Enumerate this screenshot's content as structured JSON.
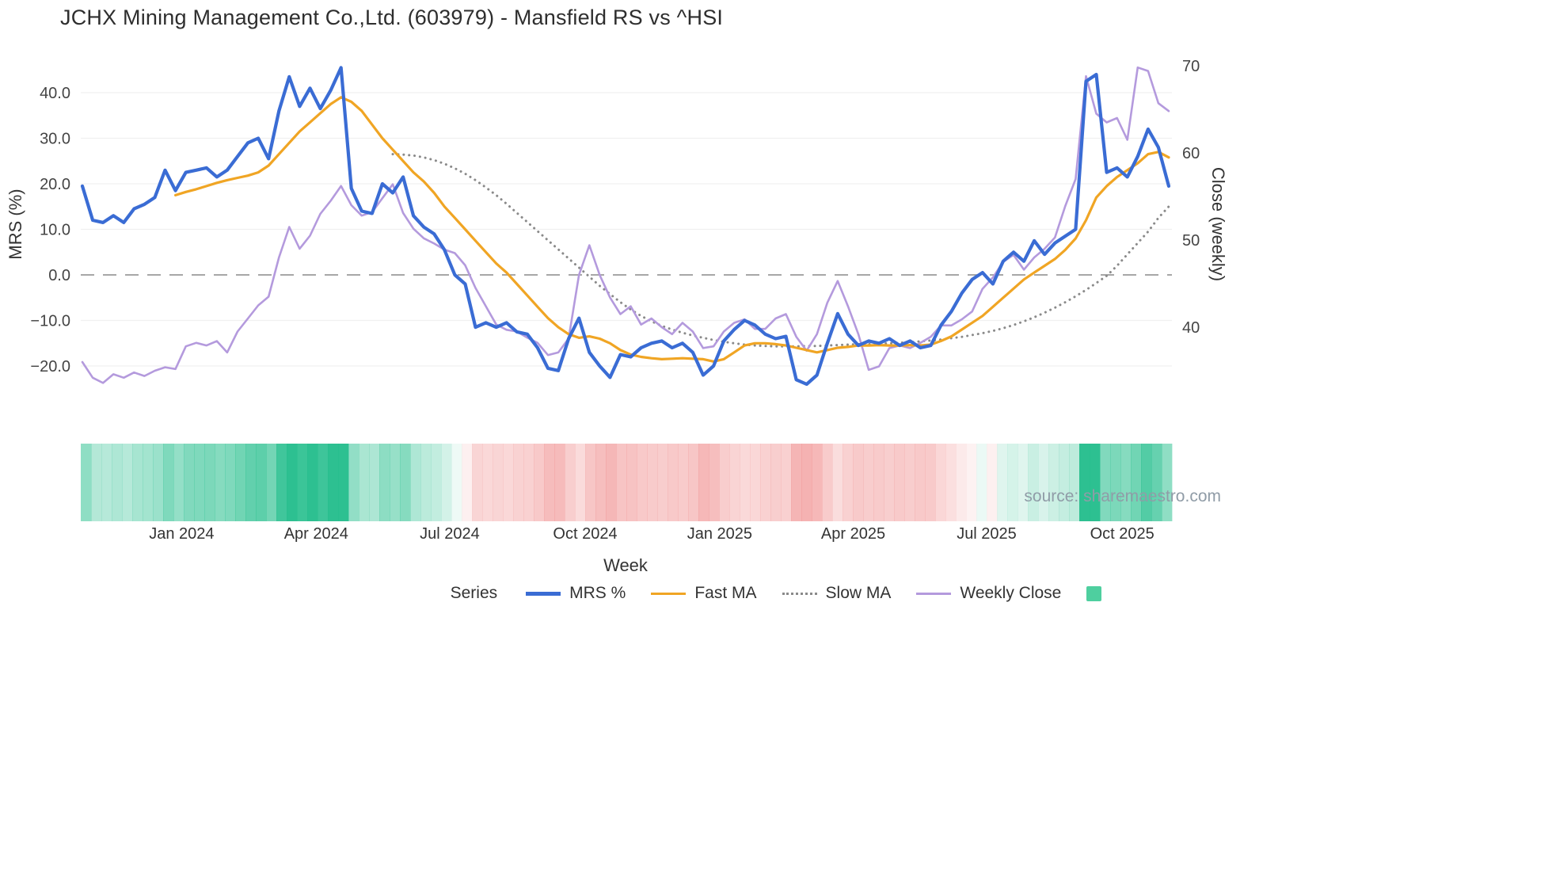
{
  "title": "JCHX Mining Management Co.,Ltd. (603979) - Mansfield RS vs ^HSI",
  "watermark": "source: sharemaestro.com",
  "axes": {
    "left_label": "MRS (%)",
    "right_label": "Close (weekly)",
    "x_label": "Week",
    "left_ticks": [
      {
        "label": "40.0",
        "v": 40
      },
      {
        "label": "30.0",
        "v": 30
      },
      {
        "label": "20.0",
        "v": 20
      },
      {
        "label": "10.0",
        "v": 10
      },
      {
        "label": "0.0",
        "v": 0
      },
      {
        "label": "−10.0",
        "v": -10
      },
      {
        "label": "−20.0",
        "v": -20
      }
    ],
    "right_ticks": [
      {
        "label": "70",
        "v": 70
      },
      {
        "label": "60",
        "v": 60
      },
      {
        "label": "50",
        "v": 50
      },
      {
        "label": "40",
        "v": 40
      }
    ],
    "x_ticks": [
      {
        "label": "Jan 2024",
        "i": 9.6
      },
      {
        "label": "Apr 2024",
        "i": 22.6
      },
      {
        "label": "Jul 2024",
        "i": 35.5
      },
      {
        "label": "Oct 2024",
        "i": 48.6
      },
      {
        "label": "Jan 2025",
        "i": 61.6
      },
      {
        "label": "Apr 2025",
        "i": 74.5
      },
      {
        "label": "Jul 2025",
        "i": 87.4
      },
      {
        "label": "Oct 2025",
        "i": 100.5
      }
    ]
  },
  "legend": {
    "title": "Series",
    "items": [
      {
        "label": "MRS %",
        "series": 0
      },
      {
        "label": "Fast MA",
        "series": 1
      },
      {
        "label": "Slow MA",
        "series": 2
      },
      {
        "label": "Weekly Close",
        "series": 3
      }
    ],
    "heat_swatch_color": "#4ecf9f"
  },
  "chart_data": {
    "type": "line",
    "title": "JCHX Mining Management Co.,Ltd. (603979) - Mansfield RS vs ^HSI",
    "xlabel": "Week",
    "ylabel_left": "MRS (%)",
    "ylabel_right": "Close (weekly)",
    "x_unit": "week_index",
    "x_tick_labels": [
      "Jan 2024",
      "Apr 2024",
      "Jul 2024",
      "Oct 2024",
      "Jan 2025",
      "Apr 2025",
      "Jul 2025",
      "Oct 2025"
    ],
    "left_axis_ticks": [
      40,
      30,
      20,
      10,
      0,
      -10,
      -20
    ],
    "right_axis_ticks": [
      70,
      60,
      50,
      40
    ],
    "zero_line": 0,
    "grid": "horizontal-faint",
    "legend_position": "bottom-center",
    "strip_colors": {
      "positive": "#22bd8b",
      "negative": "#ee8080"
    },
    "series": [
      {
        "name": "MRS %",
        "axis": "left",
        "color": "#3a6cd4",
        "style": "solid",
        "width": 4.2,
        "values": [
          19.5,
          12,
          11.5,
          13,
          11.5,
          14.5,
          15.5,
          17,
          23,
          18.5,
          22.5,
          23,
          23.5,
          21.5,
          23,
          26,
          29,
          30,
          25.5,
          36,
          43.5,
          37,
          41,
          36.5,
          40.5,
          45.5,
          19,
          14,
          13.5,
          20,
          18,
          21.5,
          13,
          10.5,
          9,
          5.5,
          0,
          -2,
          -11.5,
          -10.5,
          -11.5,
          -10.5,
          -12.5,
          -13,
          -16,
          -20.5,
          -21,
          -14,
          -9.5,
          -17,
          -20,
          -22.5,
          -17.5,
          -18,
          -16,
          -15,
          -14.5,
          -16,
          -15,
          -17,
          -22,
          -20,
          -14.5,
          -12,
          -10,
          -11,
          -13,
          -14,
          -13.5,
          -23,
          -24,
          -22,
          -15,
          -8.5,
          -13,
          -15.5,
          -14.5,
          -15,
          -14,
          -15.5,
          -14.5,
          -16,
          -15.5,
          -11,
          -8,
          -4,
          -1,
          0.5,
          -2,
          3,
          5,
          3,
          7.5,
          4.5,
          7,
          8.5,
          10,
          42.5,
          44,
          22.5,
          23.5,
          21.5,
          26,
          32,
          28,
          19.5
        ]
      },
      {
        "name": "Fast MA",
        "axis": "left",
        "color": "#f0a524",
        "style": "solid",
        "width": 3.2,
        "values": [
          null,
          null,
          null,
          null,
          null,
          null,
          null,
          null,
          null,
          17.5,
          18.2,
          18.8,
          19.5,
          20.2,
          20.8,
          21.3,
          21.8,
          22.5,
          24,
          26.5,
          29,
          31.5,
          33.5,
          35.5,
          37.5,
          39,
          38,
          36,
          33,
          30,
          27.5,
          25,
          22.5,
          20.5,
          18,
          15,
          12.5,
          10,
          7.5,
          5,
          2.5,
          0.5,
          -2,
          -4.5,
          -7,
          -9.5,
          -11.5,
          -13,
          -13.8,
          -13.5,
          -14,
          -15,
          -16.5,
          -17.5,
          -18,
          -18.3,
          -18.5,
          -18.4,
          -18.3,
          -18.4,
          -18.5,
          -19,
          -18.5,
          -17,
          -15.5,
          -15,
          -15,
          -15.2,
          -15.5,
          -16,
          -16.5,
          -17,
          -16.5,
          -16,
          -15.8,
          -15.5,
          -15.5,
          -15.4,
          -15.5,
          -15.5,
          -15.4,
          -15.5,
          -15.3,
          -14.5,
          -13.5,
          -12,
          -10.5,
          -9,
          -7,
          -5,
          -3,
          -1,
          0.5,
          2,
          3.5,
          5.5,
          8,
          12,
          17,
          19.5,
          21.5,
          23,
          24.5,
          26.5,
          27,
          25.8
        ]
      },
      {
        "name": "Slow MA",
        "axis": "left",
        "color": "#8a8a8a",
        "style": "dotted",
        "width": 3,
        "values": [
          null,
          null,
          null,
          null,
          null,
          null,
          null,
          null,
          null,
          null,
          null,
          null,
          null,
          null,
          null,
          null,
          null,
          null,
          null,
          null,
          null,
          null,
          null,
          null,
          null,
          null,
          null,
          null,
          null,
          null,
          26.5,
          26.4,
          26.2,
          25.8,
          25.2,
          24.4,
          23.4,
          22.2,
          20.8,
          19.2,
          17.5,
          15.6,
          13.6,
          11.6,
          9.6,
          7.6,
          5.6,
          3.6,
          1.6,
          -0.4,
          -2.4,
          -4.2,
          -6,
          -7.6,
          -9,
          -10.2,
          -11.2,
          -12,
          -12.7,
          -13.3,
          -13.8,
          -14.3,
          -14.7,
          -15,
          -15.3,
          -15.5,
          -15.6,
          -15.7,
          -15.7,
          -15.7,
          -15.6,
          -15.6,
          -15.5,
          -15.4,
          -15.3,
          -15.2,
          -15.2,
          -15.1,
          -15,
          -14.9,
          -14.8,
          -14.6,
          -14.4,
          -14.2,
          -13.9,
          -13.6,
          -13.2,
          -12.8,
          -12.3,
          -11.7,
          -11,
          -10.2,
          -9.3,
          -8.3,
          -7.2,
          -6,
          -4.7,
          -3.3,
          -1.8,
          -0.2,
          2,
          4.5,
          7,
          9.5,
          12.5,
          15
        ]
      },
      {
        "name": "Weekly Close",
        "axis": "right",
        "color": "#b49add",
        "style": "solid",
        "width": 2.6,
        "values": [
          36,
          34.2,
          33.6,
          34.6,
          34.2,
          34.8,
          34.4,
          35,
          35.4,
          35.2,
          37.8,
          38.2,
          37.9,
          38.4,
          37.1,
          39.5,
          41,
          42.5,
          43.5,
          48,
          51.5,
          49,
          50.5,
          53,
          54.5,
          56.2,
          54,
          52.8,
          53.2,
          54.8,
          56.4,
          53.1,
          51.3,
          50.2,
          49.6,
          48.9,
          48.5,
          47.1,
          44.5,
          42.4,
          40.3,
          39.7,
          39.5,
          38.8,
          38.2,
          36.8,
          37.1,
          38.7,
          46,
          49.4,
          46,
          43.4,
          41.5,
          42.4,
          40.3,
          41,
          40,
          39.2,
          40.5,
          39.5,
          37.6,
          37.8,
          39.5,
          40.5,
          40.9,
          39.8,
          39.8,
          41,
          41.5,
          38.9,
          37.3,
          39.2,
          42.8,
          45.3,
          42.4,
          39.2,
          35.1,
          35.5,
          37.6,
          37.9,
          37.6,
          38.2,
          38.9,
          40.2,
          40.2,
          40.9,
          41.8,
          44.4,
          45.7,
          47.5,
          48.3,
          46.6,
          48,
          49,
          50.3,
          53.9,
          57,
          68.8,
          64.5,
          63.5,
          64,
          61.5,
          69.8,
          69.4,
          65.7,
          64.8
        ]
      }
    ]
  }
}
